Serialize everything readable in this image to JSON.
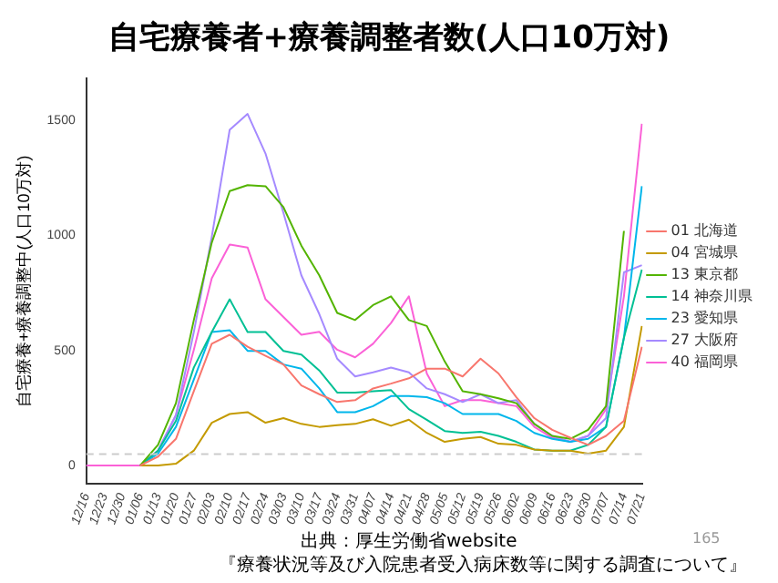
{
  "chart_data": {
    "type": "line",
    "title": "自宅療養者+療養調整者数(人口10万対)",
    "ylabel": "自宅療養+療養調整中(人口10万対)",
    "categories": [
      "12/16",
      "12/23",
      "12/30",
      "01/06",
      "01/13",
      "01/20",
      "01/27",
      "02/03",
      "02/10",
      "02/17",
      "02/24",
      "03/03",
      "03/10",
      "03/17",
      "03/24",
      "03/31",
      "04/07",
      "04/14",
      "04/21",
      "04/28",
      "05/05",
      "05/12",
      "05/19",
      "05/26",
      "06/02",
      "06/09",
      "06/16",
      "06/23",
      "06/30",
      "07/07",
      "07/14",
      "07/21"
    ],
    "series": [
      {
        "name": "01 北海道",
        "color": "#f8766d",
        "values": [
          null,
          null,
          null,
          0,
          39,
          116,
          323,
          529,
          568,
          516,
          477,
          439,
          348,
          310,
          276,
          284,
          335,
          356,
          379,
          421,
          421,
          387,
          464,
          400,
          297,
          206,
          155,
          121,
          90,
          129,
          194,
          516
        ]
      },
      {
        "name": "04 宮城県",
        "color": "#c49a00",
        "values": [
          null,
          null,
          null,
          0,
          0,
          8,
          65,
          186,
          224,
          232,
          186,
          206,
          181,
          168,
          175,
          181,
          201,
          173,
          199,
          142,
          103,
          116,
          124,
          95,
          90,
          70,
          65,
          65,
          52,
          65,
          168,
          606
        ]
      },
      {
        "name": "13 東京都",
        "color": "#53b400",
        "values": [
          null,
          null,
          null,
          0,
          90,
          271,
          632,
          968,
          1192,
          1218,
          1213,
          1122,
          955,
          826,
          663,
          632,
          697,
          735,
          632,
          606,
          452,
          323,
          310,
          292,
          271,
          181,
          129,
          116,
          155,
          258,
          1019,
          null
        ]
      },
      {
        "name": "14 神奈川県",
        "color": "#00c094",
        "values": [
          null,
          null,
          null,
          0,
          65,
          194,
          426,
          580,
          722,
          580,
          580,
          498,
          482,
          413,
          317,
          317,
          323,
          328,
          245,
          199,
          150,
          142,
          147,
          129,
          103,
          70,
          65,
          65,
          90,
          168,
          555,
          851
        ]
      },
      {
        "name": "23 愛知県",
        "color": "#00b6eb",
        "values": [
          null,
          null,
          null,
          0,
          52,
          168,
          374,
          580,
          588,
          498,
          498,
          439,
          421,
          335,
          232,
          232,
          258,
          302,
          302,
          297,
          271,
          224,
          224,
          224,
          194,
          142,
          116,
          103,
          116,
          168,
          555,
          1213
        ]
      },
      {
        "name": "27 大阪府",
        "color": "#a58aff",
        "values": [
          null,
          null,
          null,
          0,
          65,
          219,
          580,
          993,
          1458,
          1527,
          1355,
          1097,
          826,
          658,
          464,
          387,
          405,
          426,
          405,
          335,
          310,
          276,
          310,
          271,
          284,
          181,
          129,
          103,
          129,
          206,
          839,
          870
        ]
      },
      {
        "name": "40 福岡県",
        "color": "#fb61d7",
        "values": [
          0,
          0,
          0,
          0,
          65,
          219,
          503,
          813,
          960,
          947,
          722,
          645,
          568,
          581,
          503,
          470,
          529,
          619,
          735,
          400,
          258,
          284,
          284,
          271,
          258,
          168,
          121,
          103,
          129,
          245,
          735,
          1484
        ]
      }
    ],
    "ylim": [
      -80,
      1680
    ],
    "yticks": [
      0,
      500,
      1000,
      1500
    ],
    "grid": false,
    "legend": "right",
    "marker": "none",
    "line_style": "solid",
    "ref_lines": [
      {
        "axis": "y",
        "value": 50,
        "color": "#cccccc",
        "line_style": "dashed"
      }
    ],
    "annotations": [
      "出典：厚生労働省website",
      "165",
      "『療養状況等及び入院患者受入病床数等に関する調査について』"
    ]
  }
}
